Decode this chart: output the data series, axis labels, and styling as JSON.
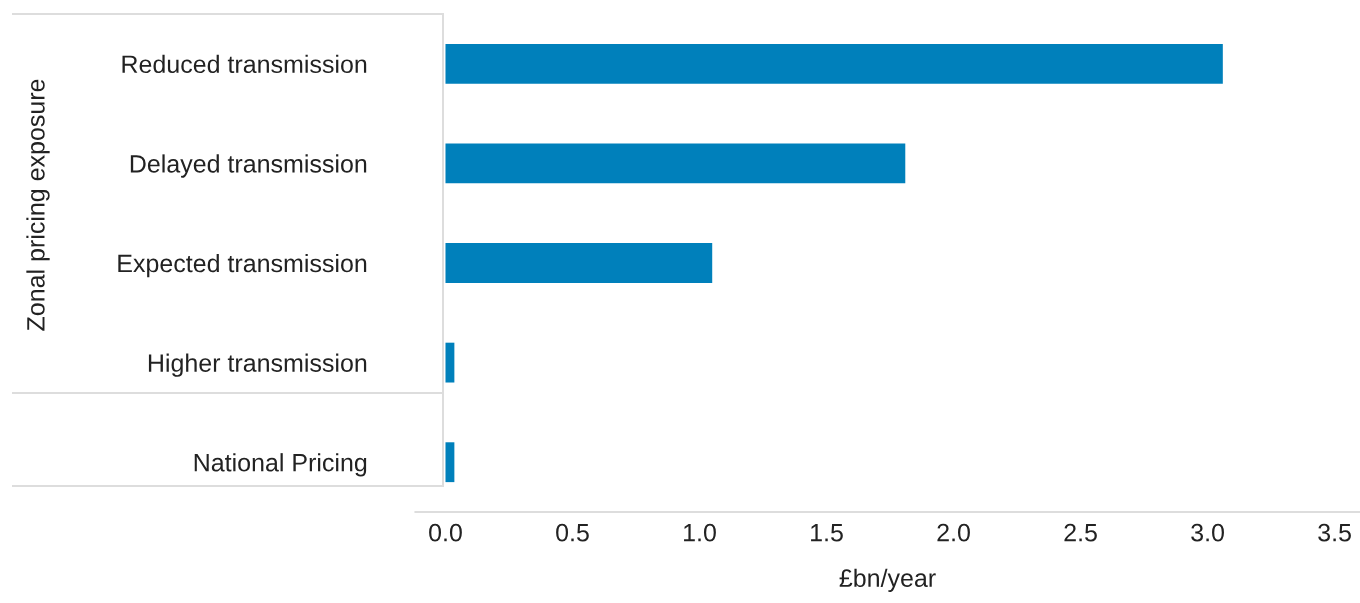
{
  "chart_data": {
    "type": "bar",
    "orientation": "horizontal",
    "categories": [
      "Reduced transmission",
      "Delayed transmission",
      "Expected transmission",
      "Higher transmission",
      "National Pricing"
    ],
    "values": [
      3.06,
      1.81,
      1.05,
      0.035,
      0.035
    ],
    "color": "#0080bb",
    "xlabel": "£bn/year",
    "ylabel": "Zonal pricing exposure",
    "xlim": [
      -0.12,
      3.6
    ],
    "xticks": [
      {
        "value": 0,
        "label": "0.0"
      },
      0.5,
      {
        "value": 1,
        "label": "1.0"
      },
      1.5,
      {
        "value": 2,
        "label": "2.0"
      },
      2.5,
      {
        "value": 3,
        "label": "3.0"
      },
      3.5
    ],
    "grid": false,
    "legend": false
  }
}
